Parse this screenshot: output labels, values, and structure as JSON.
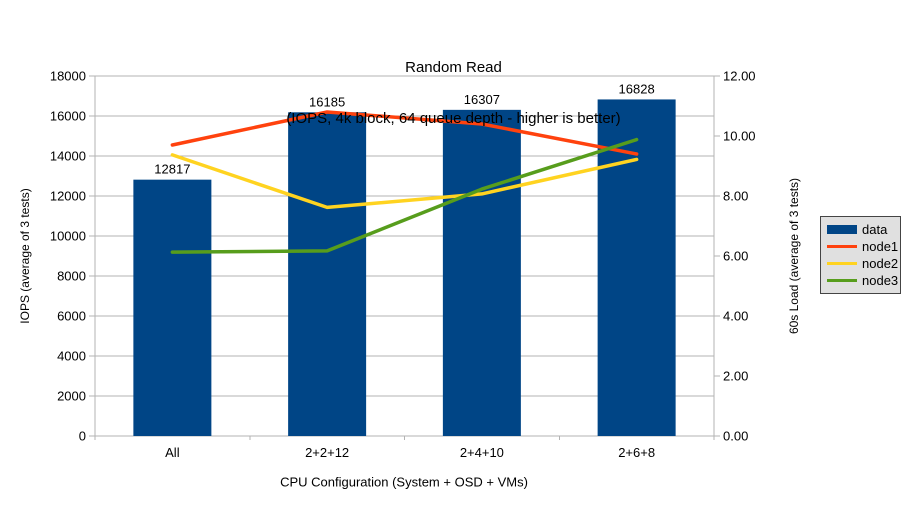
{
  "chart_data": {
    "type": "bar+line",
    "title": "Random Read",
    "subtitle": "(IOPS, 4k block, 64 queue depth - higher is better)",
    "xlabel": "CPU Configuration (System + OSD + VMs)",
    "ylabel_left": "IOPS (average of 3 tests)",
    "ylabel_right": "60s Load (average of 3 tests)",
    "categories": [
      "All",
      "2+2+12",
      "2+4+10",
      "2+6+8"
    ],
    "series": [
      {
        "name": "data",
        "type": "bar",
        "axis": "left",
        "color": "#004586",
        "values": [
          12817,
          16185,
          16307,
          16828
        ]
      },
      {
        "name": "node1",
        "type": "line",
        "axis": "right",
        "color": "#FF420E",
        "values": [
          9.7,
          10.8,
          10.4,
          9.4
        ]
      },
      {
        "name": "node2",
        "type": "line",
        "axis": "right",
        "color": "#FFD320",
        "values": [
          9.37,
          7.62,
          8.07,
          9.22
        ]
      },
      {
        "name": "node3",
        "type": "line",
        "axis": "right",
        "color": "#579D1C",
        "values": [
          6.13,
          6.17,
          8.23,
          9.88
        ]
      }
    ],
    "bar_labels": [
      "12817",
      "16185",
      "16307",
      "16828"
    ],
    "y_left": {
      "min": 0,
      "max": 18000,
      "step": 2000,
      "tick_labels": [
        "0",
        "2000",
        "4000",
        "6000",
        "8000",
        "10000",
        "12000",
        "14000",
        "16000",
        "18000"
      ]
    },
    "y_right": {
      "min": 0,
      "max": 12,
      "step": 2,
      "tick_labels": [
        "0.00",
        "2.00",
        "4.00",
        "6.00",
        "8.00",
        "10.00",
        "12.00"
      ]
    },
    "grid": "horizontal",
    "legend_position": "right"
  },
  "colors": {
    "background": "#ffffff",
    "grid": "#b3b3b3",
    "axis": "#b3b3b3",
    "text": "#000000",
    "legend_bg": "#e0e0e0",
    "legend_border": "#444444"
  }
}
